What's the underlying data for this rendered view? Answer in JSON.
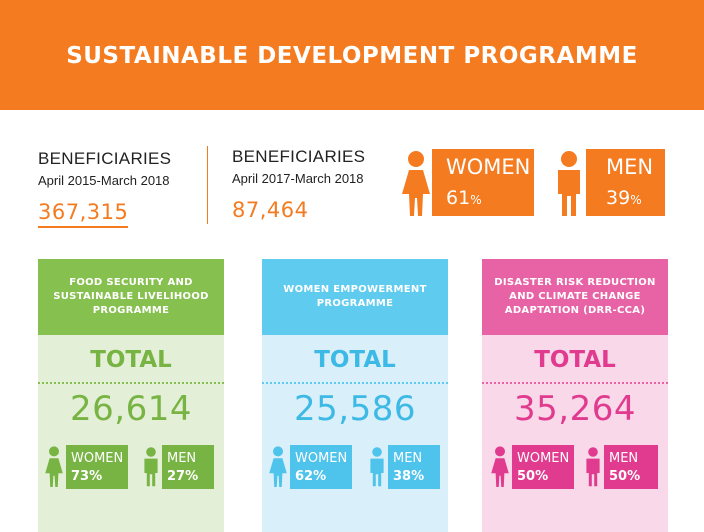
{
  "banner": {
    "title": "SUSTAINABLE DEVELOPMENT PROGRAMME",
    "color": "#f47b20"
  },
  "beneficiaries_total": {
    "label": "BENEFICIARIES",
    "period": "April 2015-March 2018",
    "value": "367,315"
  },
  "beneficiaries_recent": {
    "label": "BENEFICIARIES",
    "period": "April 2017-March 2018",
    "value": "87,464"
  },
  "gender_split": {
    "women": {
      "label": "WOMEN",
      "value": "61",
      "unit": "%"
    },
    "men": {
      "label": "MEN",
      "value": "39",
      "unit": "%"
    }
  },
  "programmes": [
    {
      "title": "FOOD SECURITY AND SUSTAINABLE LIVELIHOOD PROGRAMME",
      "total_label": "TOTAL",
      "total": "26,614",
      "women_label": "WOMEN",
      "women_pct": "73%",
      "men_label": "MEN",
      "men_pct": "27%",
      "color": "#78b443"
    },
    {
      "title": "WOMEN EMPOWERMENT PROGRAMME",
      "total_label": "TOTAL",
      "total": "25,586",
      "women_label": "WOMEN",
      "women_pct": "62%",
      "men_label": "MEN",
      "men_pct": "38%",
      "color": "#3db9e6"
    },
    {
      "title": "DISASTER RISK REDUCTION AND CLIMATE CHANGE ADAPTATION (DRR-CCA)",
      "total_label": "TOTAL",
      "total": "35,264",
      "women_label": "WOMEN",
      "women_pct": "50%",
      "men_label": "MEN",
      "men_pct": "50%",
      "color": "#e03b8f"
    }
  ],
  "icons": [
    "woman-icon",
    "man-icon"
  ]
}
